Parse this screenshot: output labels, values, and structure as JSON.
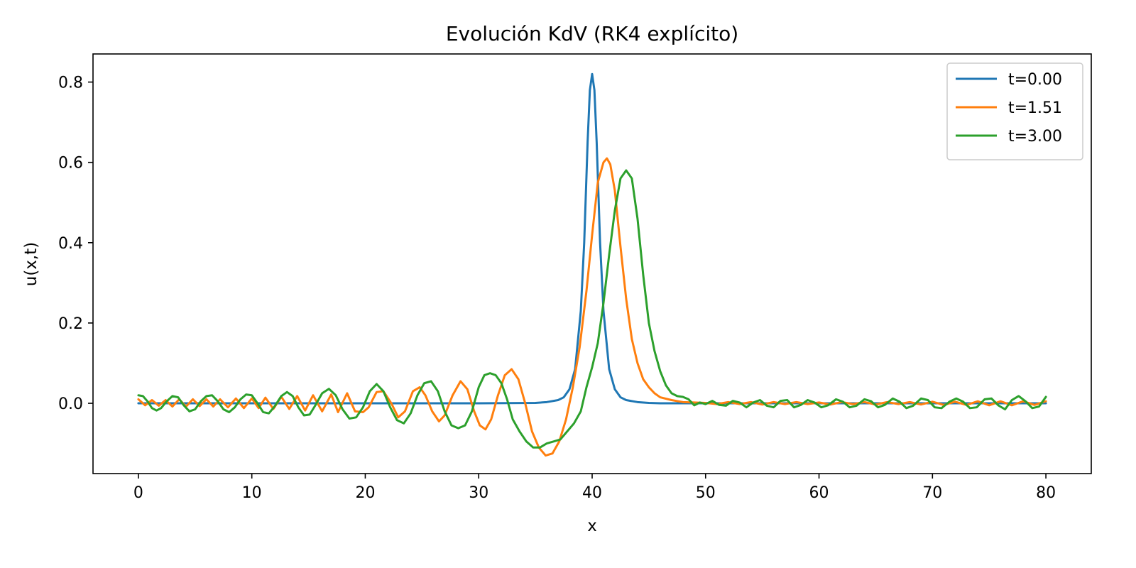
{
  "chart_data": {
    "type": "line",
    "title": "Evolución KdV (RK4 explícito)",
    "xlabel": "x",
    "ylabel": "u(x,t)",
    "xlim": [
      -4,
      84
    ],
    "ylim": [
      -0.175,
      0.87
    ],
    "xticks": [
      0,
      10,
      20,
      30,
      40,
      50,
      60,
      70,
      80
    ],
    "yticks": [
      0.0,
      0.2,
      0.4,
      0.6,
      0.8
    ],
    "ytick_labels": [
      "0.0",
      "0.2",
      "0.4",
      "0.6",
      "0.8"
    ],
    "grid": false,
    "legend_position": "top-right",
    "series": [
      {
        "name": "t=0.00",
        "color": "#1f77b4",
        "points": [
          [
            0,
            0
          ],
          [
            30,
            0
          ],
          [
            35,
            0.001
          ],
          [
            36,
            0.003
          ],
          [
            37,
            0.008
          ],
          [
            37.5,
            0.015
          ],
          [
            38,
            0.035
          ],
          [
            38.5,
            0.085
          ],
          [
            39,
            0.23
          ],
          [
            39.3,
            0.4
          ],
          [
            39.6,
            0.65
          ],
          [
            39.8,
            0.78
          ],
          [
            40,
            0.82
          ],
          [
            40.2,
            0.78
          ],
          [
            40.4,
            0.65
          ],
          [
            40.7,
            0.4
          ],
          [
            41,
            0.23
          ],
          [
            41.5,
            0.085
          ],
          [
            42,
            0.035
          ],
          [
            42.5,
            0.015
          ],
          [
            43,
            0.008
          ],
          [
            44,
            0.003
          ],
          [
            45,
            0.001
          ],
          [
            46,
            0
          ],
          [
            80,
            0
          ]
        ]
      },
      {
        "name": "t=1.51",
        "color": "#ff7f0e",
        "points": [
          [
            0,
            0.01
          ],
          [
            0.6,
            -0.005
          ],
          [
            1.2,
            0.008
          ],
          [
            1.8,
            -0.006
          ],
          [
            2.4,
            0.008
          ],
          [
            3.0,
            -0.008
          ],
          [
            3.6,
            0.01
          ],
          [
            4.2,
            -0.008
          ],
          [
            4.8,
            0.01
          ],
          [
            5.4,
            -0.007
          ],
          [
            6.0,
            0.01
          ],
          [
            6.6,
            -0.008
          ],
          [
            7.2,
            0.01
          ],
          [
            7.9,
            -0.01
          ],
          [
            8.6,
            0.012
          ],
          [
            9.3,
            -0.012
          ],
          [
            10.0,
            0.012
          ],
          [
            10.6,
            -0.012
          ],
          [
            11.2,
            0.014
          ],
          [
            11.9,
            -0.014
          ],
          [
            12.6,
            0.016
          ],
          [
            13.3,
            -0.014
          ],
          [
            14.0,
            0.018
          ],
          [
            14.7,
            -0.018
          ],
          [
            15.4,
            0.02
          ],
          [
            16.2,
            -0.02
          ],
          [
            17.0,
            0.022
          ],
          [
            17.6,
            -0.022
          ],
          [
            18.4,
            0.025
          ],
          [
            19.1,
            -0.02
          ],
          [
            19.8,
            -0.022
          ],
          [
            20.3,
            -0.01
          ],
          [
            21.0,
            0.028
          ],
          [
            21.6,
            0.03
          ],
          [
            22.3,
            0.0
          ],
          [
            22.9,
            -0.035
          ],
          [
            23.5,
            -0.02
          ],
          [
            24.2,
            0.03
          ],
          [
            24.8,
            0.04
          ],
          [
            25.3,
            0.02
          ],
          [
            25.9,
            -0.02
          ],
          [
            26.5,
            -0.045
          ],
          [
            27.0,
            -0.03
          ],
          [
            27.7,
            0.02
          ],
          [
            28.4,
            0.055
          ],
          [
            29.0,
            0.035
          ],
          [
            29.6,
            -0.02
          ],
          [
            30.1,
            -0.055
          ],
          [
            30.6,
            -0.065
          ],
          [
            31.1,
            -0.04
          ],
          [
            31.7,
            0.02
          ],
          [
            32.3,
            0.07
          ],
          [
            32.9,
            0.085
          ],
          [
            33.5,
            0.06
          ],
          [
            34.1,
            0.0
          ],
          [
            34.7,
            -0.07
          ],
          [
            35.3,
            -0.11
          ],
          [
            35.9,
            -0.13
          ],
          [
            36.5,
            -0.125
          ],
          [
            37.1,
            -0.095
          ],
          [
            37.7,
            -0.04
          ],
          [
            38.3,
            0.04
          ],
          [
            38.9,
            0.14
          ],
          [
            39.5,
            0.28
          ],
          [
            40.0,
            0.42
          ],
          [
            40.5,
            0.55
          ],
          [
            41.0,
            0.6
          ],
          [
            41.3,
            0.61
          ],
          [
            41.6,
            0.595
          ],
          [
            42.0,
            0.53
          ],
          [
            42.5,
            0.39
          ],
          [
            43.0,
            0.26
          ],
          [
            43.5,
            0.16
          ],
          [
            44.0,
            0.1
          ],
          [
            44.5,
            0.06
          ],
          [
            45.0,
            0.04
          ],
          [
            45.5,
            0.025
          ],
          [
            46.0,
            0.015
          ],
          [
            47.0,
            0.008
          ],
          [
            48.0,
            0.003
          ],
          [
            49.0,
            0.002
          ],
          [
            50,
            0.001
          ],
          [
            51,
            -0.002
          ],
          [
            52,
            0.003
          ],
          [
            53,
            -0.002
          ],
          [
            54,
            0.003
          ],
          [
            55,
            -0.003
          ],
          [
            56,
            0.003
          ],
          [
            57,
            -0.002
          ],
          [
            58,
            0.003
          ],
          [
            59,
            -0.002
          ],
          [
            60,
            0.002
          ],
          [
            61,
            -0.003
          ],
          [
            62,
            0.003
          ],
          [
            63,
            -0.002
          ],
          [
            64,
            0.003
          ],
          [
            65,
            -0.003
          ],
          [
            66,
            0.003
          ],
          [
            67,
            -0.002
          ],
          [
            68,
            0.003
          ],
          [
            69,
            -0.003
          ],
          [
            70,
            0.004
          ],
          [
            71,
            -0.004
          ],
          [
            72,
            0.004
          ],
          [
            73,
            -0.004
          ],
          [
            74,
            0.005
          ],
          [
            75,
            -0.005
          ],
          [
            76,
            0.005
          ],
          [
            77,
            -0.005
          ],
          [
            78,
            0.005
          ],
          [
            79,
            -0.004
          ],
          [
            80,
            0.005
          ]
        ]
      },
      {
        "name": "t=3.00",
        "color": "#2ca02c",
        "points": [
          [
            0,
            0.02
          ],
          [
            0.4,
            0.018
          ],
          [
            0.8,
            0.005
          ],
          [
            1.2,
            -0.012
          ],
          [
            1.6,
            -0.018
          ],
          [
            2.0,
            -0.012
          ],
          [
            2.5,
            0.005
          ],
          [
            3.0,
            0.018
          ],
          [
            3.5,
            0.015
          ],
          [
            4.0,
            -0.005
          ],
          [
            4.5,
            -0.02
          ],
          [
            5.0,
            -0.015
          ],
          [
            5.5,
            0.005
          ],
          [
            6.0,
            0.018
          ],
          [
            6.5,
            0.02
          ],
          [
            7.0,
            0.005
          ],
          [
            7.5,
            -0.015
          ],
          [
            8.0,
            -0.022
          ],
          [
            8.5,
            -0.01
          ],
          [
            9.0,
            0.01
          ],
          [
            9.5,
            0.022
          ],
          [
            10.0,
            0.02
          ],
          [
            10.5,
            0.0
          ],
          [
            11.0,
            -0.022
          ],
          [
            11.5,
            -0.025
          ],
          [
            12.0,
            -0.008
          ],
          [
            12.6,
            0.018
          ],
          [
            13.1,
            0.028
          ],
          [
            13.6,
            0.018
          ],
          [
            14.1,
            -0.01
          ],
          [
            14.6,
            -0.03
          ],
          [
            15.1,
            -0.028
          ],
          [
            15.6,
            -0.005
          ],
          [
            16.2,
            0.025
          ],
          [
            16.8,
            0.036
          ],
          [
            17.4,
            0.02
          ],
          [
            18.0,
            -0.015
          ],
          [
            18.6,
            -0.038
          ],
          [
            19.2,
            -0.035
          ],
          [
            19.8,
            -0.01
          ],
          [
            20.4,
            0.03
          ],
          [
            21.0,
            0.048
          ],
          [
            21.6,
            0.03
          ],
          [
            22.2,
            -0.01
          ],
          [
            22.8,
            -0.042
          ],
          [
            23.4,
            -0.05
          ],
          [
            24.0,
            -0.025
          ],
          [
            24.6,
            0.02
          ],
          [
            25.2,
            0.05
          ],
          [
            25.8,
            0.055
          ],
          [
            26.4,
            0.03
          ],
          [
            27.0,
            -0.02
          ],
          [
            27.6,
            -0.055
          ],
          [
            28.2,
            -0.062
          ],
          [
            28.8,
            -0.055
          ],
          [
            29.4,
            -0.02
          ],
          [
            30.0,
            0.04
          ],
          [
            30.5,
            0.07
          ],
          [
            31.0,
            0.075
          ],
          [
            31.5,
            0.07
          ],
          [
            32.0,
            0.05
          ],
          [
            32.5,
            0.01
          ],
          [
            33.0,
            -0.04
          ],
          [
            33.6,
            -0.07
          ],
          [
            34.2,
            -0.095
          ],
          [
            34.8,
            -0.11
          ],
          [
            35.4,
            -0.11
          ],
          [
            36.0,
            -0.1
          ],
          [
            36.6,
            -0.095
          ],
          [
            37.2,
            -0.09
          ],
          [
            37.8,
            -0.07
          ],
          [
            38.4,
            -0.05
          ],
          [
            39.0,
            -0.02
          ],
          [
            39.5,
            0.04
          ],
          [
            40.0,
            0.09
          ],
          [
            40.5,
            0.15
          ],
          [
            41.0,
            0.25
          ],
          [
            41.5,
            0.37
          ],
          [
            42.0,
            0.48
          ],
          [
            42.5,
            0.56
          ],
          [
            43.0,
            0.58
          ],
          [
            43.5,
            0.56
          ],
          [
            44.0,
            0.46
          ],
          [
            44.5,
            0.32
          ],
          [
            45.0,
            0.2
          ],
          [
            45.5,
            0.13
          ],
          [
            46.0,
            0.08
          ],
          [
            46.5,
            0.045
          ],
          [
            47.0,
            0.025
          ],
          [
            47.5,
            0.018
          ],
          [
            48.0,
            0.016
          ],
          [
            48.5,
            0.01
          ],
          [
            49.0,
            -0.005
          ],
          [
            49.5,
            0.002
          ],
          [
            50.0,
            -0.002
          ],
          [
            50.6,
            0.006
          ],
          [
            51.2,
            -0.004
          ],
          [
            51.8,
            -0.006
          ],
          [
            52.4,
            0.006
          ],
          [
            53.0,
            0.002
          ],
          [
            53.6,
            -0.01
          ],
          [
            54.2,
            0.002
          ],
          [
            54.8,
            0.008
          ],
          [
            55.4,
            -0.006
          ],
          [
            56.0,
            -0.01
          ],
          [
            56.6,
            0.006
          ],
          [
            57.2,
            0.008
          ],
          [
            57.8,
            -0.01
          ],
          [
            58.4,
            -0.004
          ],
          [
            59.0,
            0.008
          ],
          [
            59.6,
            0.002
          ],
          [
            60.2,
            -0.01
          ],
          [
            60.8,
            -0.005
          ],
          [
            61.5,
            0.01
          ],
          [
            62.1,
            0.004
          ],
          [
            62.7,
            -0.01
          ],
          [
            63.3,
            -0.006
          ],
          [
            64.0,
            0.01
          ],
          [
            64.6,
            0.005
          ],
          [
            65.2,
            -0.01
          ],
          [
            65.8,
            -0.004
          ],
          [
            66.5,
            0.012
          ],
          [
            67.1,
            0.004
          ],
          [
            67.7,
            -0.012
          ],
          [
            68.3,
            -0.006
          ],
          [
            69.0,
            0.012
          ],
          [
            69.6,
            0.008
          ],
          [
            70.2,
            -0.01
          ],
          [
            70.8,
            -0.012
          ],
          [
            71.5,
            0.004
          ],
          [
            72.1,
            0.012
          ],
          [
            72.7,
            0.004
          ],
          [
            73.3,
            -0.012
          ],
          [
            73.9,
            -0.01
          ],
          [
            74.6,
            0.01
          ],
          [
            75.2,
            0.012
          ],
          [
            75.8,
            -0.005
          ],
          [
            76.4,
            -0.015
          ],
          [
            77.0,
            0.008
          ],
          [
            77.6,
            0.018
          ],
          [
            78.2,
            0.005
          ],
          [
            78.8,
            -0.012
          ],
          [
            79.4,
            -0.008
          ],
          [
            80.0,
            0.016
          ]
        ]
      }
    ]
  }
}
